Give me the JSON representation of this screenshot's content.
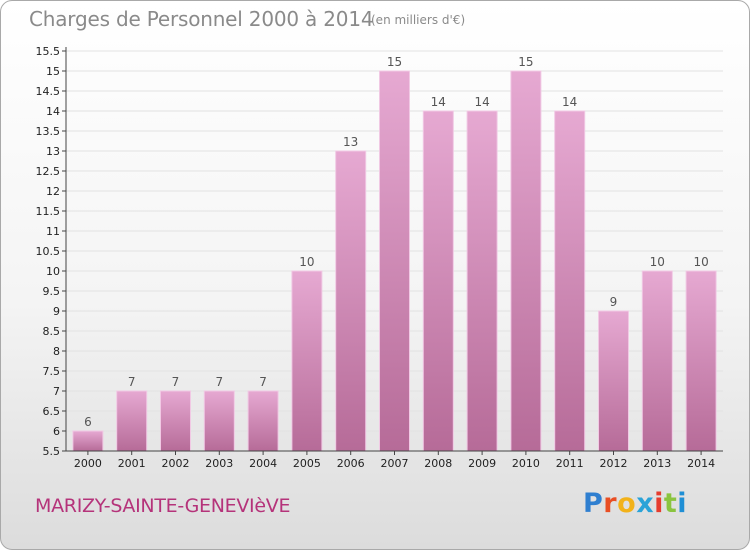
{
  "title": "Charges de Personnel 2000 à 2014",
  "subtitle": "(en milliers d'€)",
  "commune": "MARIZY-SAINTE-GENEVIèVE",
  "brand": {
    "letters": [
      "P",
      "r",
      "o",
      "x",
      "i",
      "t",
      "i"
    ]
  },
  "chart_data": {
    "type": "bar",
    "categories": [
      "2000",
      "2001",
      "2002",
      "2003",
      "2004",
      "2005",
      "2006",
      "2007",
      "2008",
      "2009",
      "2010",
      "2011",
      "2012",
      "2013",
      "2014"
    ],
    "values": [
      6,
      7,
      7,
      7,
      7,
      10,
      13,
      15,
      14,
      14,
      15,
      14,
      9,
      10,
      10
    ],
    "data_labels": [
      "6",
      "7",
      "7",
      "7",
      "7",
      "10",
      "13",
      "15",
      "14",
      "14",
      "15",
      "14",
      "9",
      "10",
      "10"
    ],
    "yticks": [
      "5.5",
      "6",
      "6.5",
      "7",
      "7.5",
      "8",
      "8.5",
      "9",
      "9.5",
      "10",
      "10.5",
      "11",
      "11.5",
      "12",
      "12.5",
      "13",
      "13.5",
      "14",
      "14.5",
      "15",
      "15.5"
    ],
    "ylim": [
      5.5,
      15.5
    ],
    "grid": true,
    "colors": {
      "bar_top": "#e6a9d2",
      "bar_bottom": "#b66b98",
      "bar_edge": "#f1c9e4",
      "axis": "#444444",
      "grid": "#e2e2e2",
      "tick_text": "#222222",
      "label_text": "#555555"
    }
  }
}
